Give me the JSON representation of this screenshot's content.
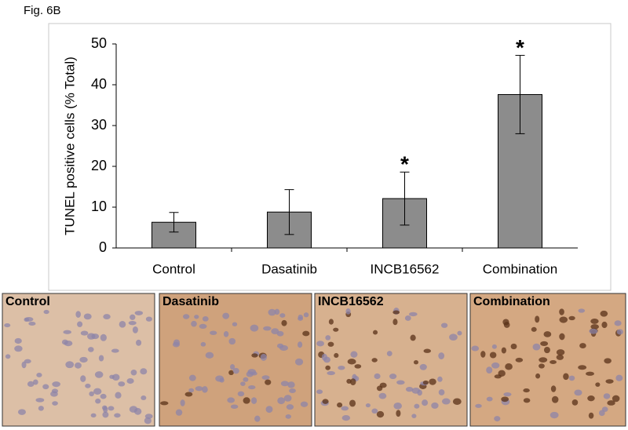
{
  "figure_label": "Fig. 6B",
  "chart_data": {
    "type": "bar",
    "y_label": "TUNEL positive cells (% Total)",
    "categories": [
      "Control",
      "Dasatinib",
      "INCB16562",
      "Combination"
    ],
    "values": [
      6.3,
      8.8,
      12.1,
      37.6
    ],
    "errors": [
      2.4,
      5.5,
      6.5,
      9.6
    ],
    "color": "#8c8c8c",
    "ylim": [
      0,
      50
    ],
    "yticks": [
      0,
      10,
      20,
      30,
      40,
      50
    ],
    "annotations": [
      {
        "category": "INCB16562",
        "text": "*"
      },
      {
        "category": "Combination",
        "text": "*"
      }
    ]
  },
  "panels": [
    {
      "label": "Control"
    },
    {
      "label": "Dasatinib"
    },
    {
      "label": "INCB16562"
    },
    {
      "label": "Combination"
    }
  ]
}
